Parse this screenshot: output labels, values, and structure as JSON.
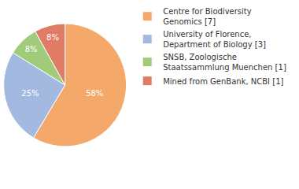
{
  "chart_data": {
    "type": "pie",
    "categories": [
      "Centre for Biodiversity Genomics [7]",
      "University of Florence, Department of Biology [3]",
      "SNSB, Zoologische Staatssammlung Muenchen [1]",
      "Mined from GenBank, NCBI [1]"
    ],
    "values": [
      58,
      25,
      8,
      8
    ],
    "value_labels": [
      "58%",
      "25%",
      "8%",
      "8%"
    ],
    "colors": [
      "#f4a96b",
      "#a3b9e0",
      "#9fcb7a",
      "#e07b65"
    ],
    "data_labels": true,
    "legend": "right"
  }
}
